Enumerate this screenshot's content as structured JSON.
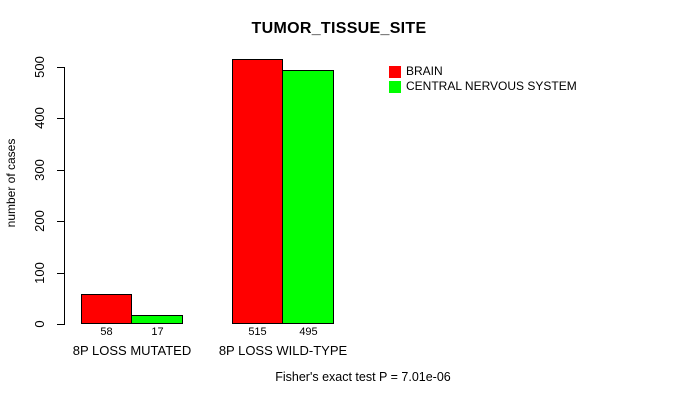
{
  "chart_data": {
    "type": "bar",
    "title": "TUMOR_TISSUE_SITE",
    "xlabel": "",
    "ylabel": "number of cases",
    "categories": [
      "8P LOSS MUTATED",
      "8P LOSS WILD-TYPE"
    ],
    "series": [
      {
        "name": "BRAIN",
        "color": "#ff0000",
        "values": [
          58,
          515
        ]
      },
      {
        "name": "CENTRAL NERVOUS SYSTEM",
        "color": "#00ff00",
        "values": [
          17,
          495
        ]
      }
    ],
    "ylim": [
      0,
      500
    ],
    "yticks": [
      0,
      100,
      200,
      300,
      400,
      500
    ],
    "grid": false,
    "bar_value_labels_shown": true,
    "legend_position": "upper-right",
    "bar_border_color": "#000000",
    "background_color": "#ffffff",
    "annotation": "Fisher's exact test P = 7.01e-06"
  }
}
